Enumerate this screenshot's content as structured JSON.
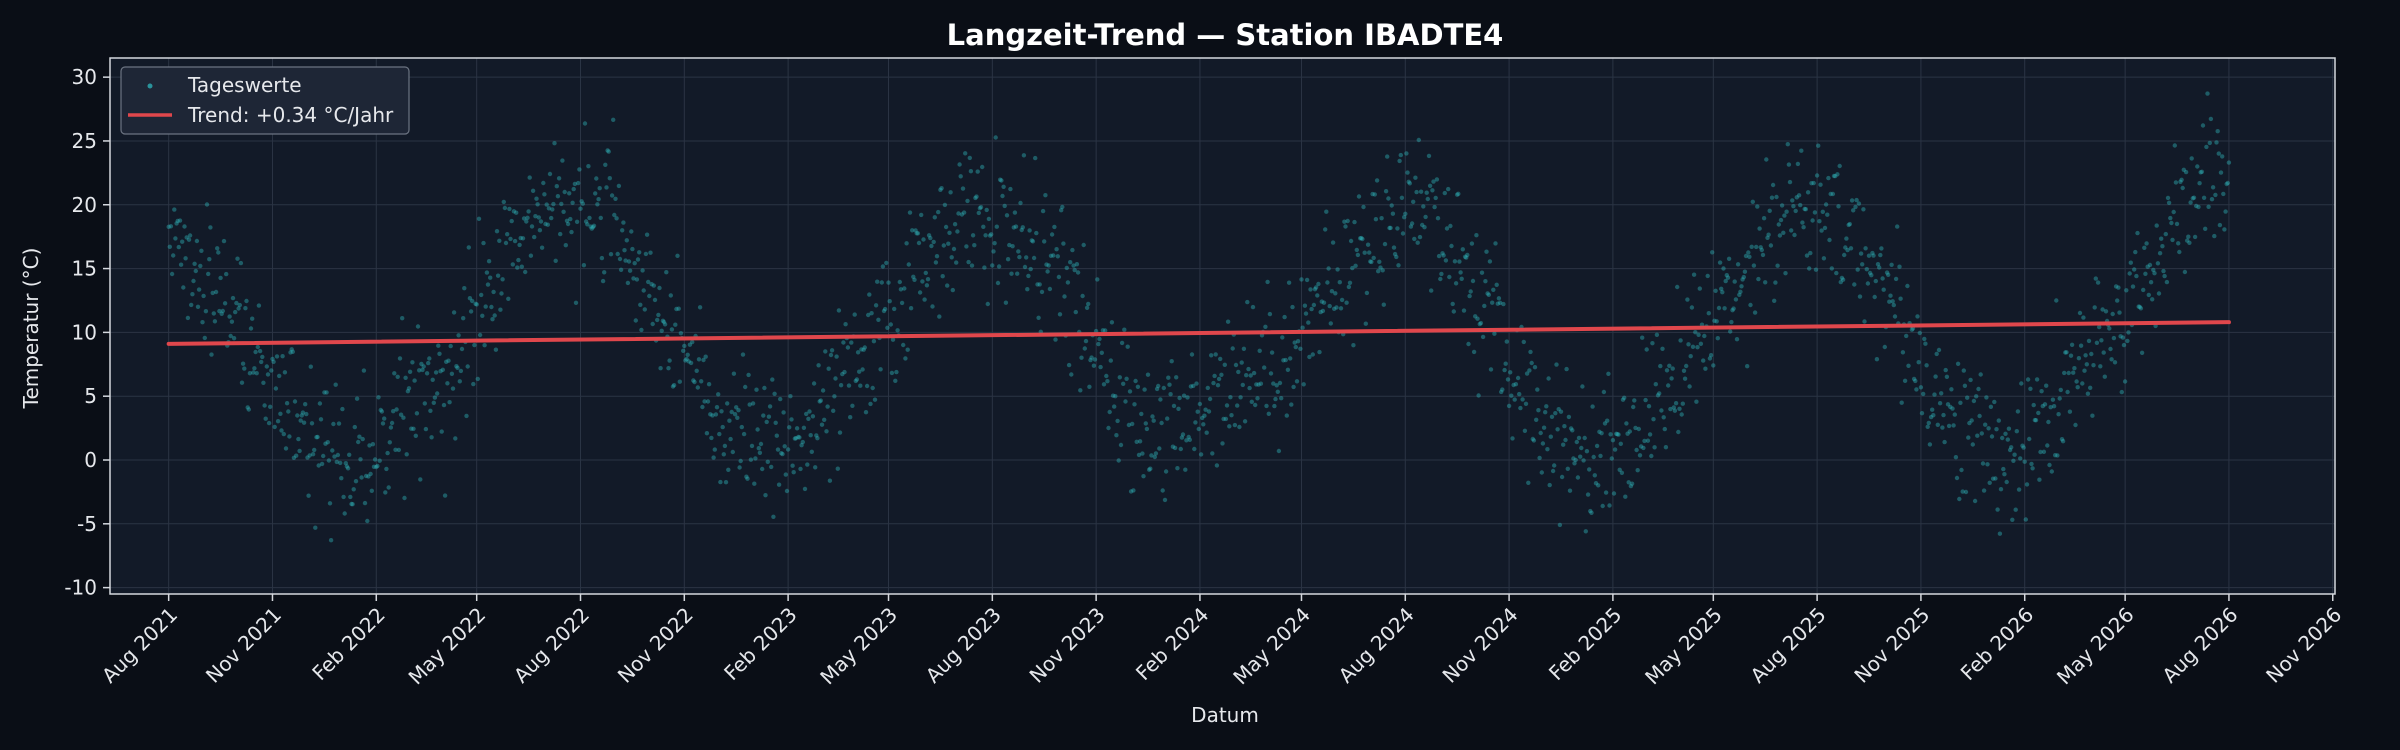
{
  "chart_data": {
    "type": "scatter",
    "title": "Langzeit-Trend — Station IBADTE4",
    "xlabel": "Datum",
    "ylabel": "Temperatur (°C)",
    "xlim": [
      "2021-06-10",
      "2026-11-03"
    ],
    "ylim": [
      -10.5,
      31.5
    ],
    "grid": true,
    "legend_position": "top-left",
    "x_tick_labels": [
      "Aug 2021",
      "Nov 2021",
      "Feb 2022",
      "May 2022",
      "Aug 2022",
      "Nov 2022",
      "Feb 2023",
      "May 2023",
      "Aug 2023",
      "Nov 2023",
      "Feb 2024",
      "May 2024",
      "Aug 2024",
      "Nov 2024",
      "Feb 2025",
      "May 2025",
      "Aug 2025",
      "Nov 2025",
      "Feb 2026",
      "May 2026",
      "Aug 2026",
      "Nov 2026"
    ],
    "x_tick_dates": [
      "2021-08-01",
      "2021-11-01",
      "2022-02-01",
      "2022-05-01",
      "2022-08-01",
      "2022-11-01",
      "2023-02-01",
      "2023-05-01",
      "2023-08-01",
      "2023-11-01",
      "2024-02-01",
      "2024-05-01",
      "2024-08-01",
      "2024-11-01",
      "2025-02-01",
      "2025-05-01",
      "2025-08-01",
      "2025-11-01",
      "2026-02-01",
      "2026-05-01",
      "2026-08-01",
      "2026-11-01"
    ],
    "y_ticks": [
      -10,
      -5,
      0,
      5,
      10,
      15,
      20,
      25,
      30
    ],
    "series": [
      {
        "name": "Tageswerte",
        "kind": "scatter",
        "color": "#2fb7bd",
        "date_start": "2021-08-01",
        "date_end": "2026-08-01",
        "approx_monthly_means": [
          {
            "x": "2021-08-15",
            "y": 16
          },
          {
            "x": "2021-09-15",
            "y": 13
          },
          {
            "x": "2021-10-15",
            "y": 9
          },
          {
            "x": "2021-11-15",
            "y": 4
          },
          {
            "x": "2021-12-15",
            "y": 1
          },
          {
            "x": "2022-01-15",
            "y": 0
          },
          {
            "x": "2022-02-15",
            "y": 2
          },
          {
            "x": "2022-03-15",
            "y": 5
          },
          {
            "x": "2022-04-15",
            "y": 8
          },
          {
            "x": "2022-05-15",
            "y": 14
          },
          {
            "x": "2022-06-15",
            "y": 18
          },
          {
            "x": "2022-07-15",
            "y": 21
          },
          {
            "x": "2022-08-15",
            "y": 20
          },
          {
            "x": "2022-09-15",
            "y": 15
          },
          {
            "x": "2022-10-15",
            "y": 12
          },
          {
            "x": "2022-11-15",
            "y": 6
          },
          {
            "x": "2022-12-15",
            "y": 1
          },
          {
            "x": "2023-01-15",
            "y": 2
          },
          {
            "x": "2023-02-15",
            "y": 1
          },
          {
            "x": "2023-03-15",
            "y": 5
          },
          {
            "x": "2023-04-15",
            "y": 8
          },
          {
            "x": "2023-05-15",
            "y": 13
          },
          {
            "x": "2023-06-15",
            "y": 18
          },
          {
            "x": "2023-07-15",
            "y": 19
          },
          {
            "x": "2023-08-15",
            "y": 18
          },
          {
            "x": "2023-09-15",
            "y": 16
          },
          {
            "x": "2023-10-15",
            "y": 12
          },
          {
            "x": "2023-11-15",
            "y": 5
          },
          {
            "x": "2023-12-15",
            "y": 3
          },
          {
            "x": "2024-01-15",
            "y": 2
          },
          {
            "x": "2024-02-15",
            "y": 6
          },
          {
            "x": "2024-03-15",
            "y": 7
          },
          {
            "x": "2024-04-15",
            "y": 8
          },
          {
            "x": "2024-05-15",
            "y": 12
          },
          {
            "x": "2024-06-15",
            "y": 15
          },
          {
            "x": "2024-07-15",
            "y": 19
          },
          {
            "x": "2024-08-15",
            "y": 21
          },
          {
            "x": "2024-09-15",
            "y": 16
          },
          {
            "x": "2024-10-15",
            "y": 11
          },
          {
            "x": "2024-11-15",
            "y": 5
          },
          {
            "x": "2024-12-15",
            "y": 2
          },
          {
            "x": "2025-01-15",
            "y": 0
          },
          {
            "x": "2025-02-15",
            "y": 2
          },
          {
            "x": "2025-03-15",
            "y": 5
          },
          {
            "x": "2025-04-15",
            "y": 9
          },
          {
            "x": "2025-05-15",
            "y": 13
          },
          {
            "x": "2025-06-15",
            "y": 18
          },
          {
            "x": "2025-07-15",
            "y": 20
          },
          {
            "x": "2025-08-15",
            "y": 18
          },
          {
            "x": "2025-09-15",
            "y": 16
          },
          {
            "x": "2025-10-15",
            "y": 11
          },
          {
            "x": "2025-11-15",
            "y": 5
          },
          {
            "x": "2025-12-15",
            "y": 2
          },
          {
            "x": "2026-01-15",
            "y": 0
          },
          {
            "x": "2026-02-15",
            "y": 2
          },
          {
            "x": "2026-03-15",
            "y": 6
          },
          {
            "x": "2026-04-15",
            "y": 9
          },
          {
            "x": "2026-05-15",
            "y": 14
          },
          {
            "x": "2026-06-15",
            "y": 18
          },
          {
            "x": "2026-07-15",
            "y": 23
          },
          {
            "x": "2026-08-01",
            "y": 21
          }
        ]
      },
      {
        "name": "Trend: +0.34 °C/Jahr",
        "kind": "line",
        "color": "#e0474c",
        "x": [
          "2021-08-01",
          "2026-08-01"
        ],
        "y": [
          9.1,
          10.8
        ]
      }
    ]
  },
  "colors": {
    "page_bg": "#0a0e16",
    "plot_bg": "#121a28",
    "grid": "#2b3444",
    "spine": "#d5d8de",
    "text": "#e6e8ec"
  }
}
